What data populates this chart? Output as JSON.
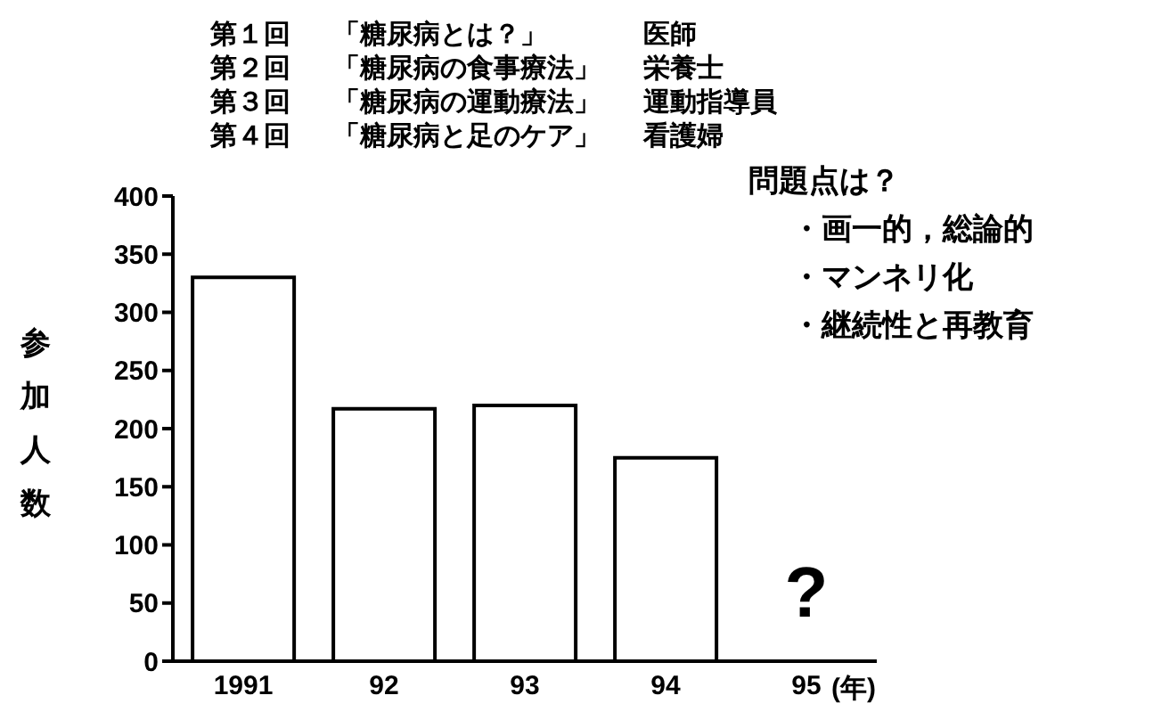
{
  "chart_data": {
    "type": "bar",
    "ylabel": "参加人数",
    "xlabel": "(年)",
    "categories": [
      "1991",
      "92",
      "93",
      "94",
      "95"
    ],
    "values": [
      330,
      217,
      220,
      175,
      null
    ],
    "color": "#ffffff",
    "ylim": [
      0,
      400
    ],
    "yticks": [
      0,
      50,
      100,
      150,
      200,
      250,
      300,
      350,
      400
    ],
    "grid": false,
    "legend": false,
    "annotations": [
      "第１回\t「糖尿病とは？」\t医師",
      "第２回\t「糖尿病の食事療法」\t栄養士",
      "第３回\t「糖尿病の運動療法」\t運動指導員",
      "第４回\t「糖尿病と足のケア」\t看護婦",
      "問題点は？",
      "・画一的，総論的",
      "・マンネリ化",
      "・継続性と再教育",
      "?"
    ]
  }
}
